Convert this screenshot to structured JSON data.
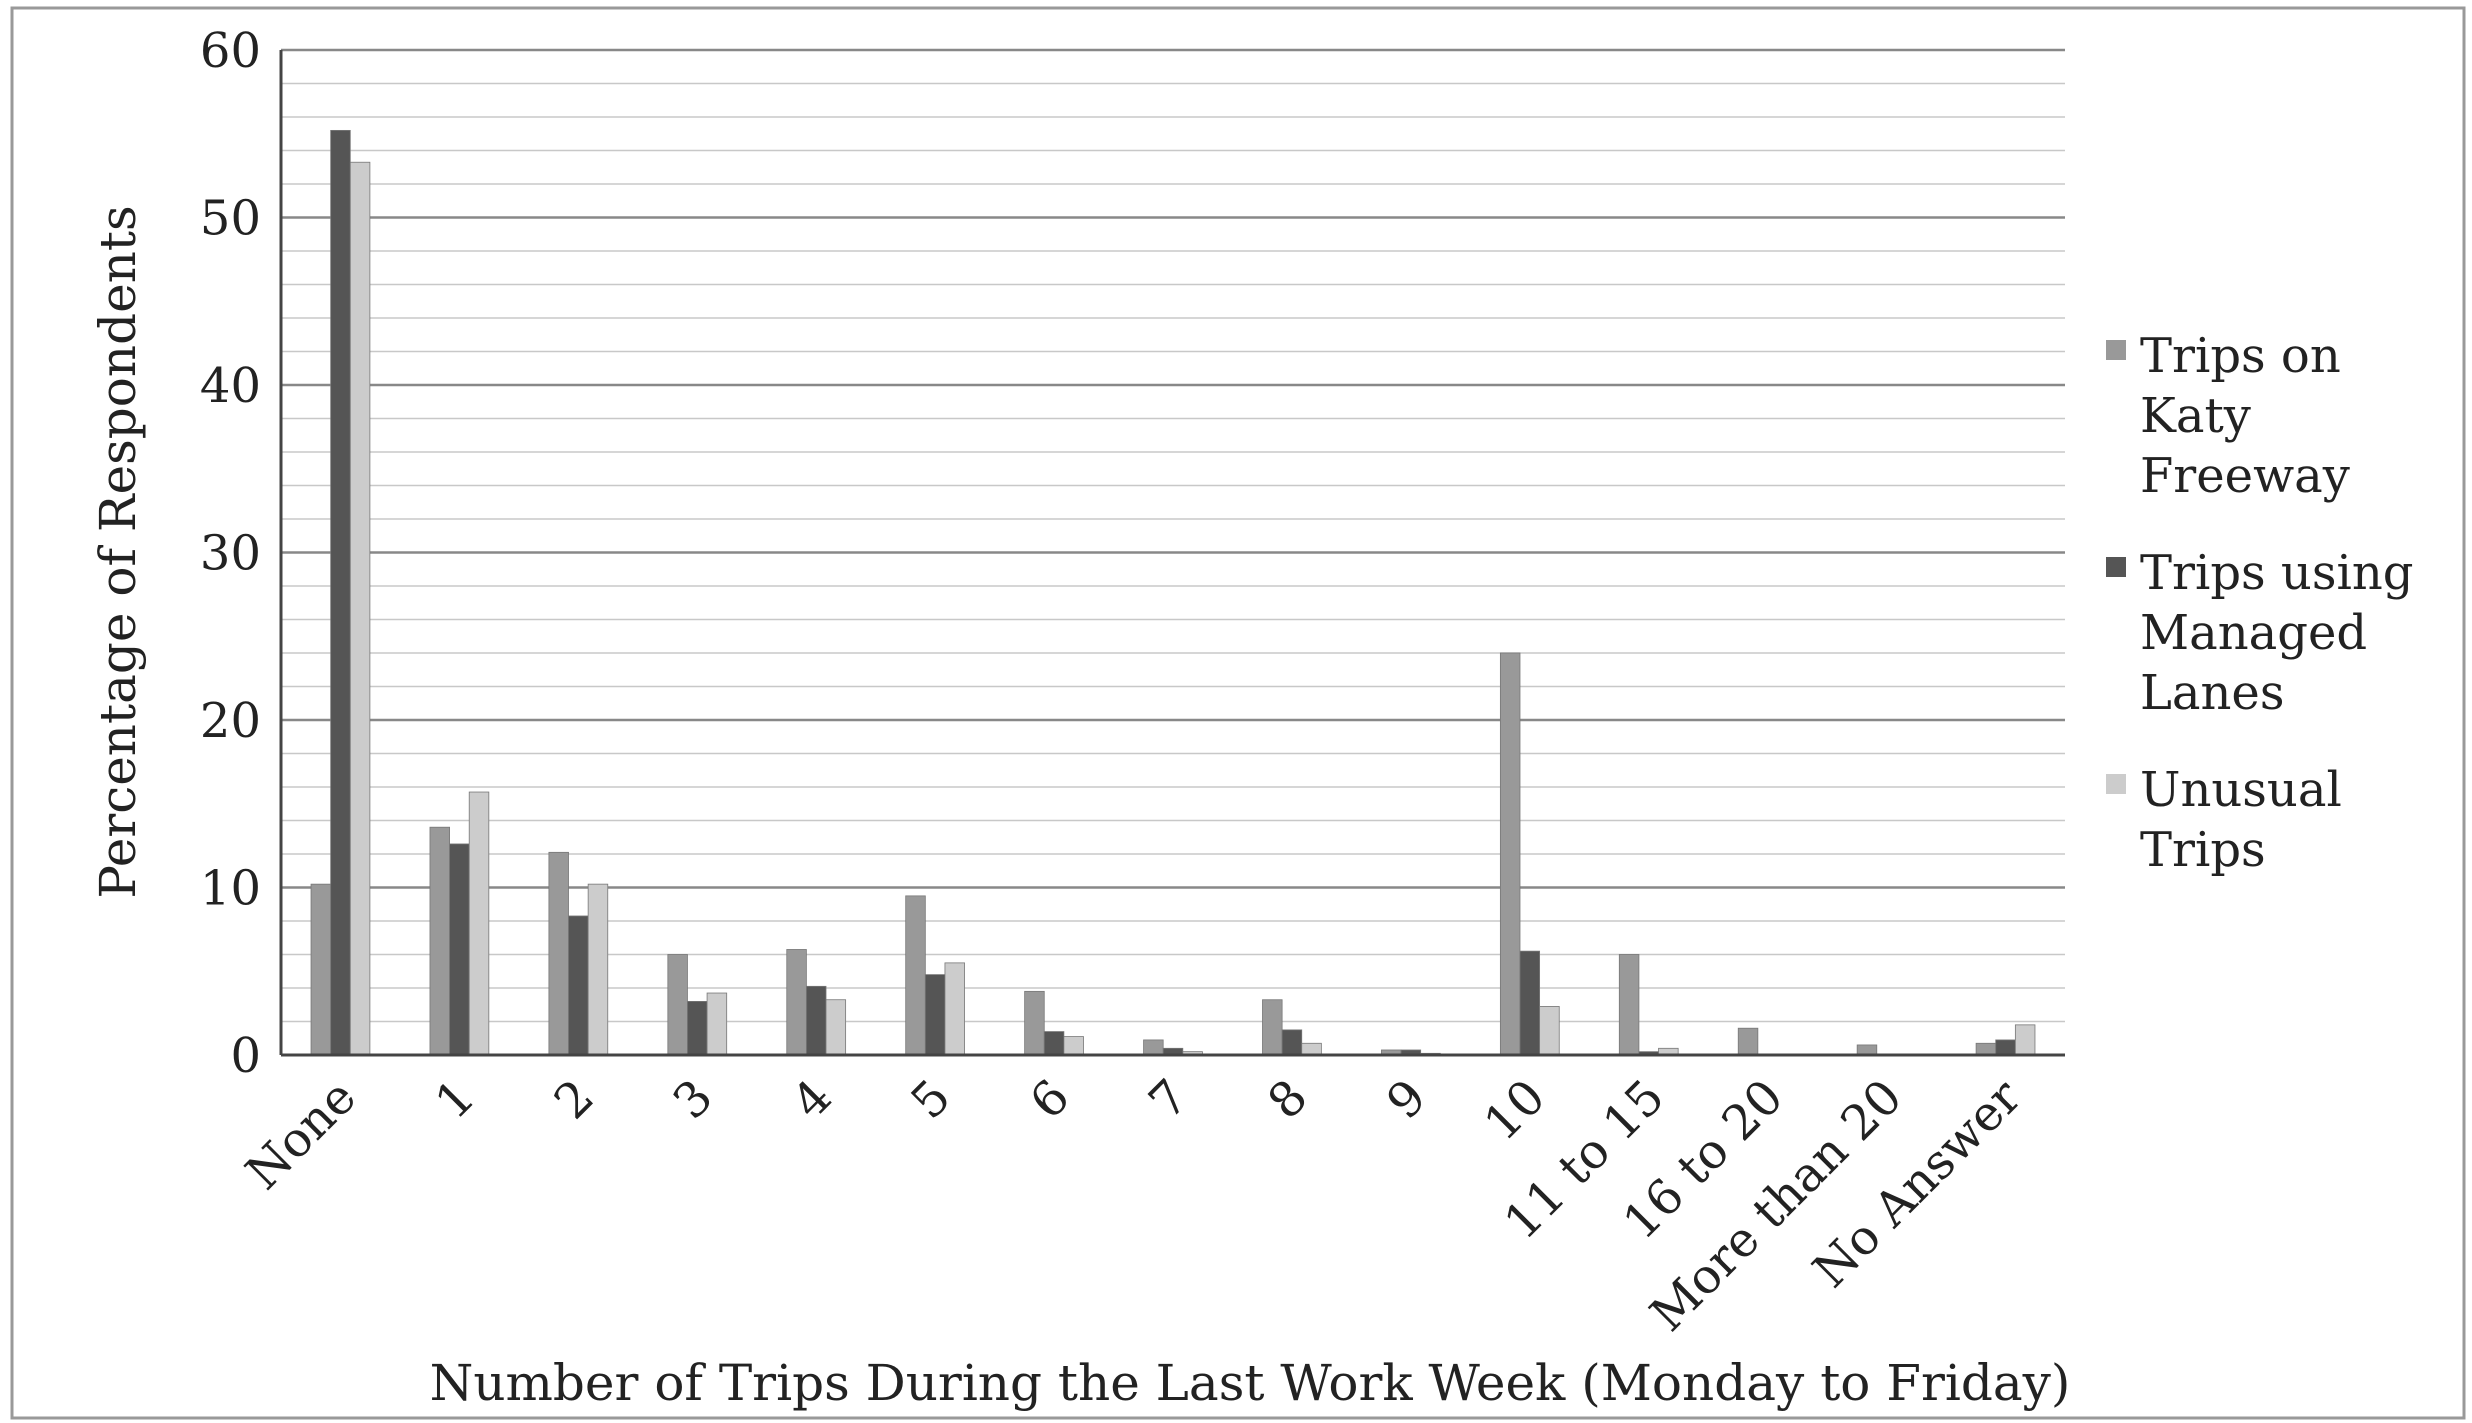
{
  "chart_data": {
    "type": "bar",
    "x_label": "Number of Trips During the Last Work Week (Monday to Friday)",
    "y_label": "Percentage of Respondents",
    "categories": [
      "None",
      "1",
      "2",
      "3",
      "4",
      "5",
      "6",
      "7",
      "8",
      "9",
      "10",
      "11 to 15",
      "16 to 20",
      "More than 20",
      "No Answer"
    ],
    "series": [
      {
        "name": "Trips on Katy Freeway",
        "color": "#999999",
        "values": [
          10.2,
          13.6,
          12.1,
          6.0,
          6.3,
          9.5,
          3.8,
          0.9,
          3.3,
          0.3,
          24.0,
          6.0,
          1.6,
          0.6,
          0.7
        ]
      },
      {
        "name": "Trips using Managed Lanes",
        "color": "#555555",
        "values": [
          55.2,
          12.6,
          8.3,
          3.2,
          4.1,
          4.8,
          1.4,
          0.4,
          1.5,
          0.3,
          6.2,
          0.2,
          0,
          0,
          0.9
        ]
      },
      {
        "name": "Unusual Trips",
        "color": "#cccccc",
        "values": [
          53.3,
          15.7,
          10.2,
          3.7,
          3.3,
          5.5,
          1.1,
          0.2,
          0.7,
          0.1,
          2.9,
          0.4,
          0,
          0,
          1.8
        ]
      }
    ],
    "ylim": [
      0,
      60
    ],
    "yticks": [
      0,
      10,
      20,
      30,
      40,
      50,
      60
    ],
    "minor_yticks": [
      2,
      4,
      6,
      8,
      12,
      14,
      16,
      18,
      22,
      24,
      26,
      28,
      32,
      34,
      36,
      38,
      42,
      44,
      46,
      48,
      52,
      54,
      56,
      58
    ],
    "grid": true,
    "legend": "right"
  }
}
